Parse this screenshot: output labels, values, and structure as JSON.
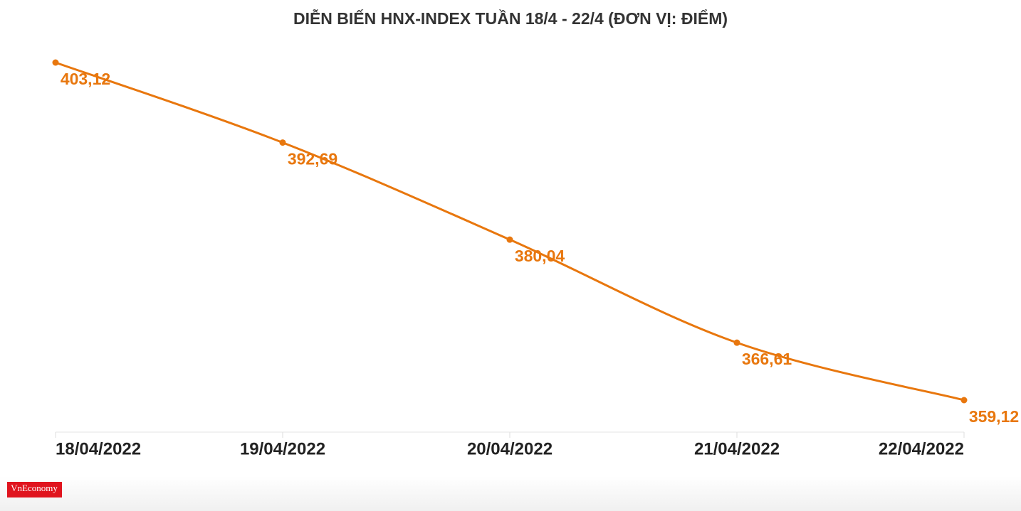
{
  "chart_data": {
    "type": "line",
    "title": "DIỄN BIẾN HNX-INDEX TUẦN 18/4 - 22/4 (ĐƠN VỊ: ĐIỂM)",
    "categories": [
      "18/04/2022",
      "19/04/2022",
      "20/04/2022",
      "21/04/2022",
      "22/04/2022"
    ],
    "values": [
      403.12,
      392.69,
      380.04,
      366.61,
      359.12
    ],
    "value_labels": [
      "403,12",
      "392,69",
      "380,04",
      "366,61",
      "359,12"
    ],
    "color": "#e8770e",
    "source": "VnEconomy"
  }
}
